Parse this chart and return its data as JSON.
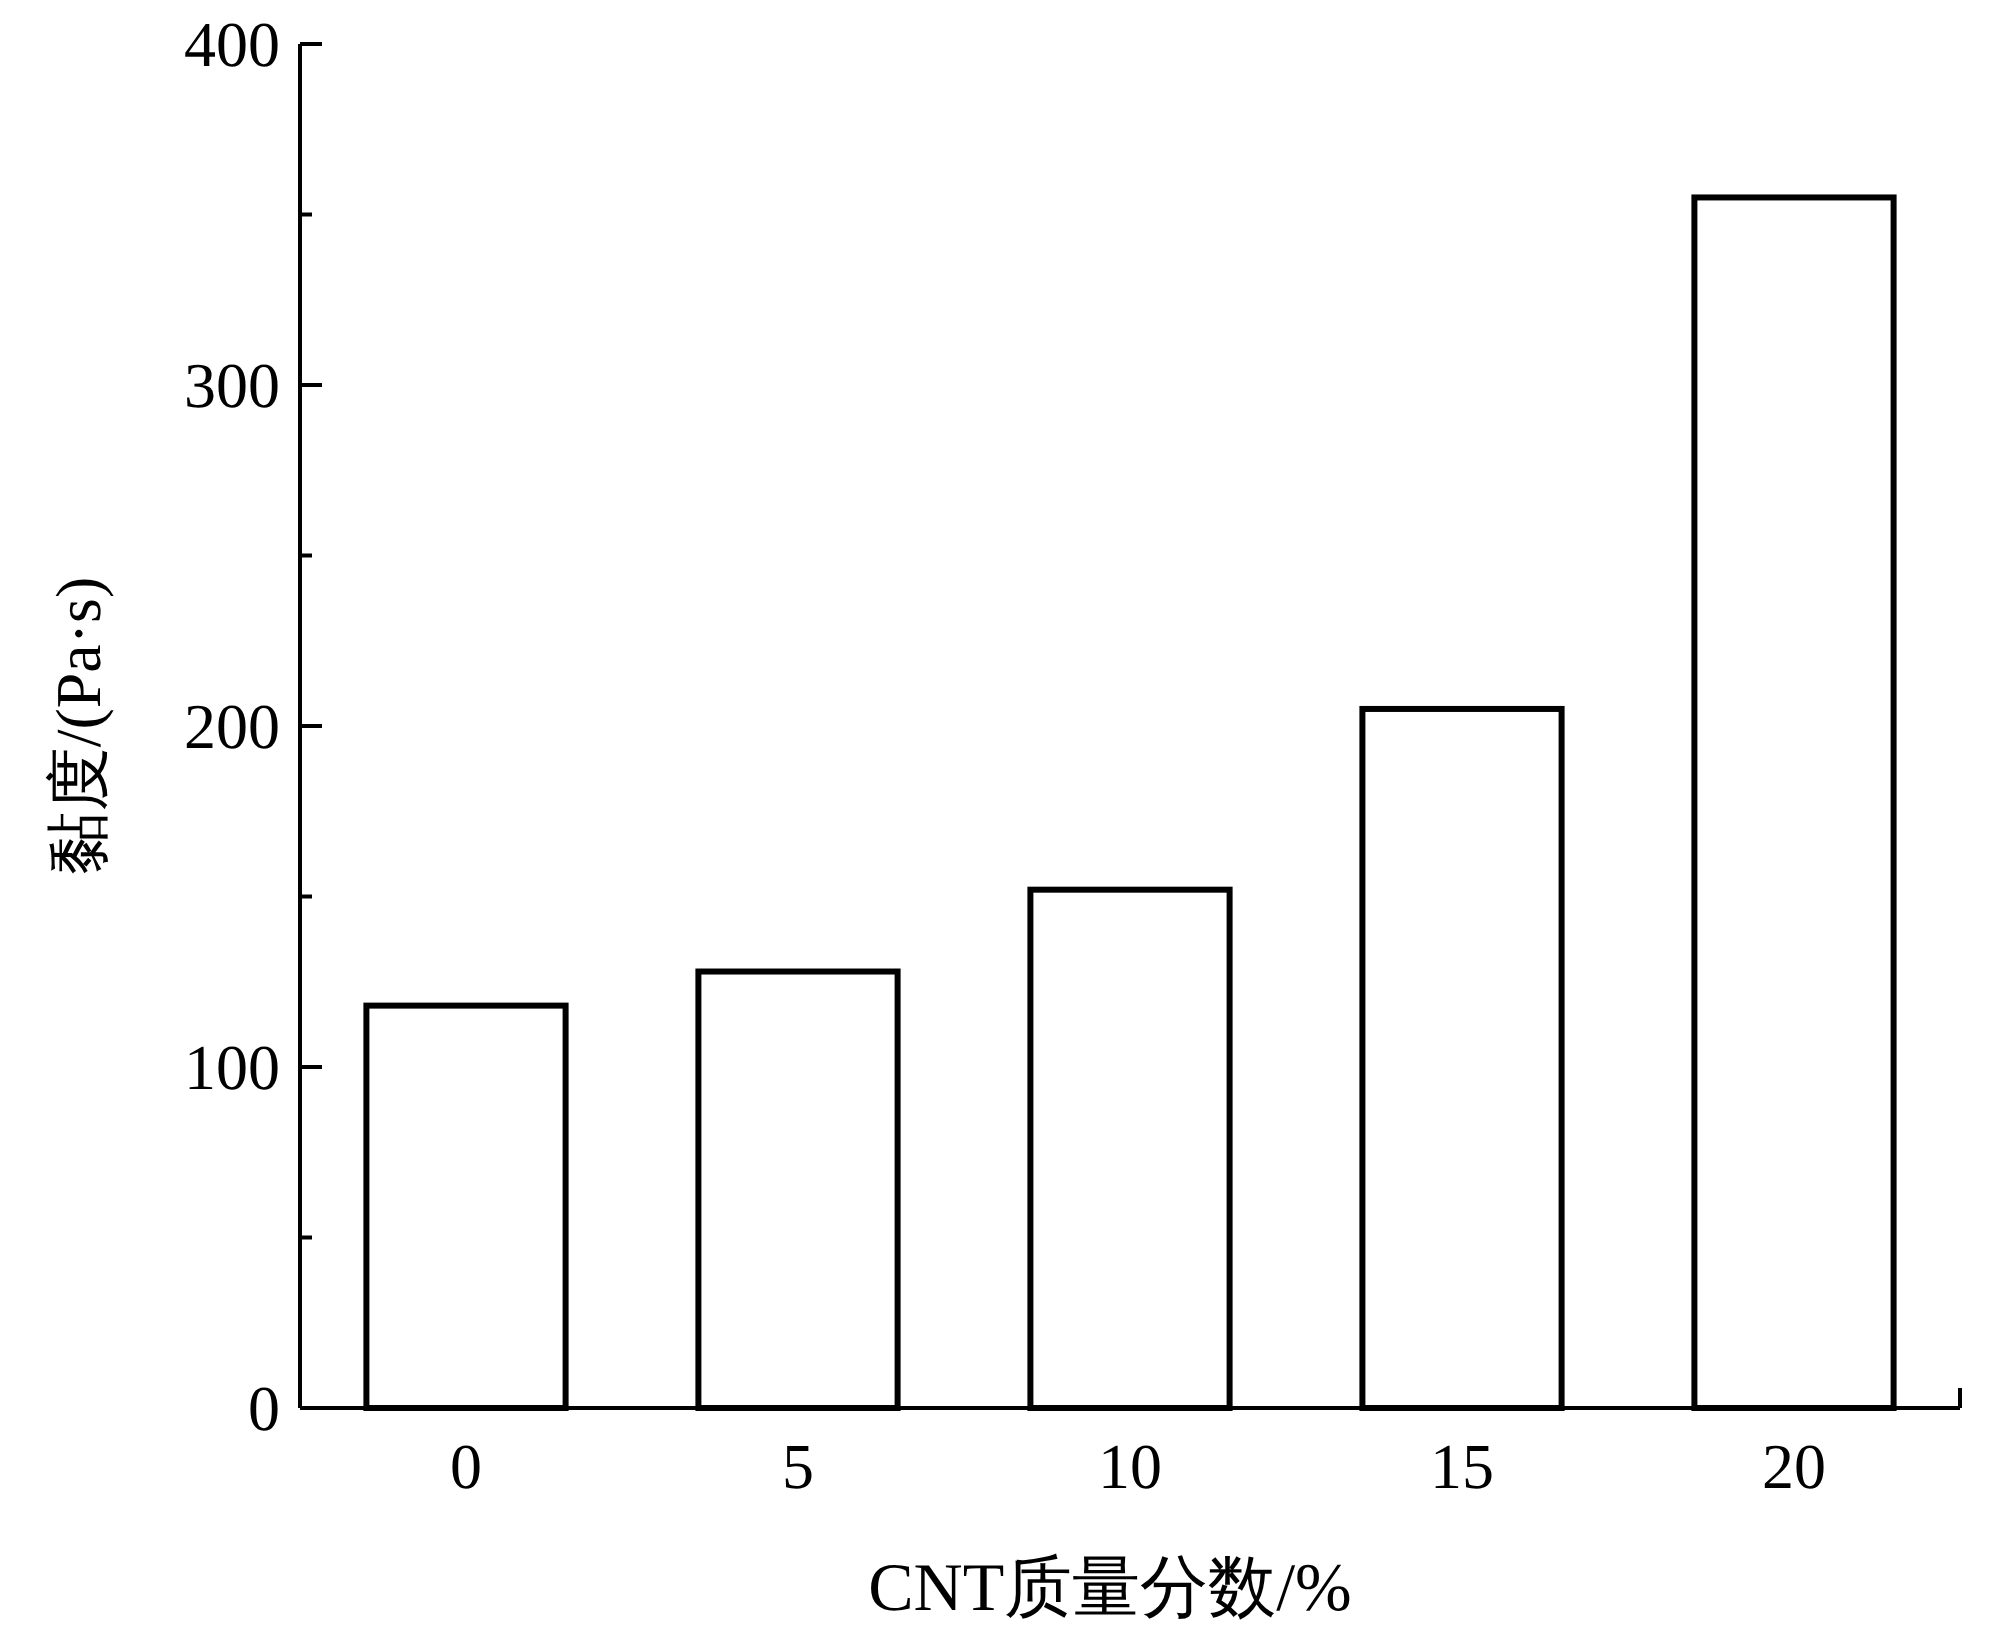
{
  "chart_data": {
    "type": "bar",
    "xlabel": "CNT质量分数/%",
    "ylabel": "黏度/(Pa·s)",
    "categories": [
      "0",
      "5",
      "10",
      "15",
      "20"
    ],
    "values": [
      118,
      128,
      152,
      205,
      355
    ],
    "color": "#ffffff",
    "ylim": [
      0,
      400
    ],
    "yticks": [
      0,
      {
        "value": 50,
        "label": null
      },
      100,
      {
        "value": 150,
        "label": null
      },
      200,
      {
        "value": 250,
        "label": null
      },
      300,
      {
        "value": 350,
        "label": null
      },
      400
    ],
    "grid": false
  }
}
